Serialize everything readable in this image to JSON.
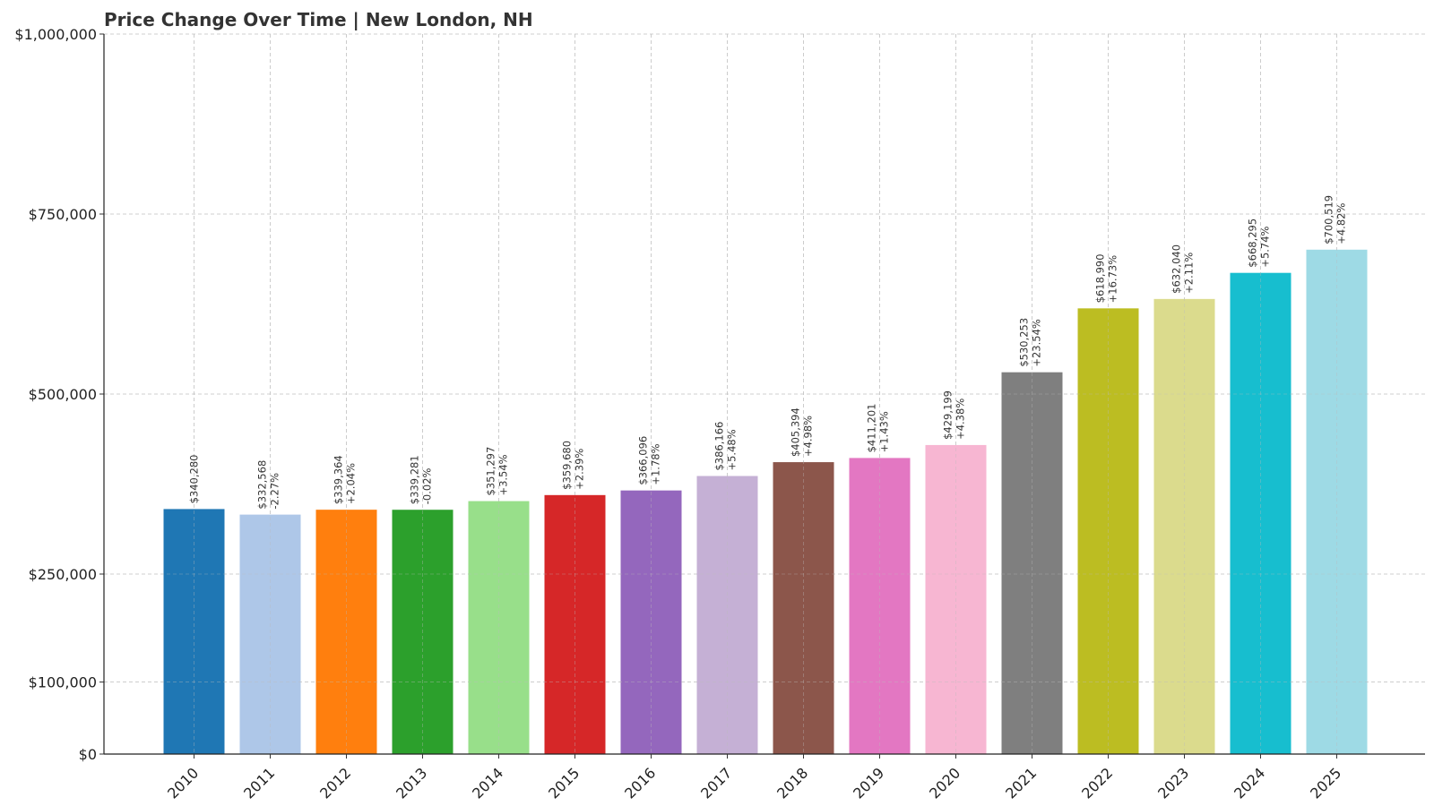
{
  "chart_data": {
    "type": "bar",
    "title": "Price Change Over Time | New London, NH",
    "xlabel": "",
    "ylabel": "",
    "ylim": [
      0,
      1000000
    ],
    "y_ticks": [
      0,
      100000,
      250000,
      500000,
      750000,
      1000000
    ],
    "y_tick_labels": [
      "$0",
      "$100,000",
      "$250,000",
      "$500,000",
      "$750,000",
      "$1,000,000"
    ],
    "grid": true,
    "categories": [
      "2010",
      "2011",
      "2012",
      "2013",
      "2014",
      "2015",
      "2016",
      "2017",
      "2018",
      "2019",
      "2020",
      "2021",
      "2022",
      "2023",
      "2024",
      "2025"
    ],
    "values": [
      340280,
      332568,
      339364,
      339281,
      351297,
      359680,
      366096,
      386166,
      405394,
      411201,
      429199,
      530253,
      618990,
      632040,
      668295,
      700519
    ],
    "value_labels": [
      "$340,280",
      "$332,568",
      "$339,364",
      "$339,281",
      "$351,297",
      "$359,680",
      "$366,096",
      "$386,166",
      "$405,394",
      "$411,201",
      "$429,199",
      "$530,253",
      "$618,990",
      "$632,040",
      "$668,295",
      "$700,519"
    ],
    "change_labels": [
      "",
      "-2.27%",
      "+2.04%",
      "-0.02%",
      "+3.54%",
      "+2.39%",
      "+1.78%",
      "+5.48%",
      "+4.98%",
      "+1.43%",
      "+4.38%",
      "+23.54%",
      "+16.73%",
      "+2.11%",
      "+5.74%",
      "+4.82%"
    ],
    "colors": [
      "#1f77b4",
      "#aec7e8",
      "#ff7f0e",
      "#2ca02c",
      "#98df8a",
      "#d62728",
      "#9467bd",
      "#c5b0d5",
      "#8c564b",
      "#e377c2",
      "#f7b6d2",
      "#7f7f7f",
      "#bcbd22",
      "#dbdb8d",
      "#17becf",
      "#9edae5"
    ]
  }
}
